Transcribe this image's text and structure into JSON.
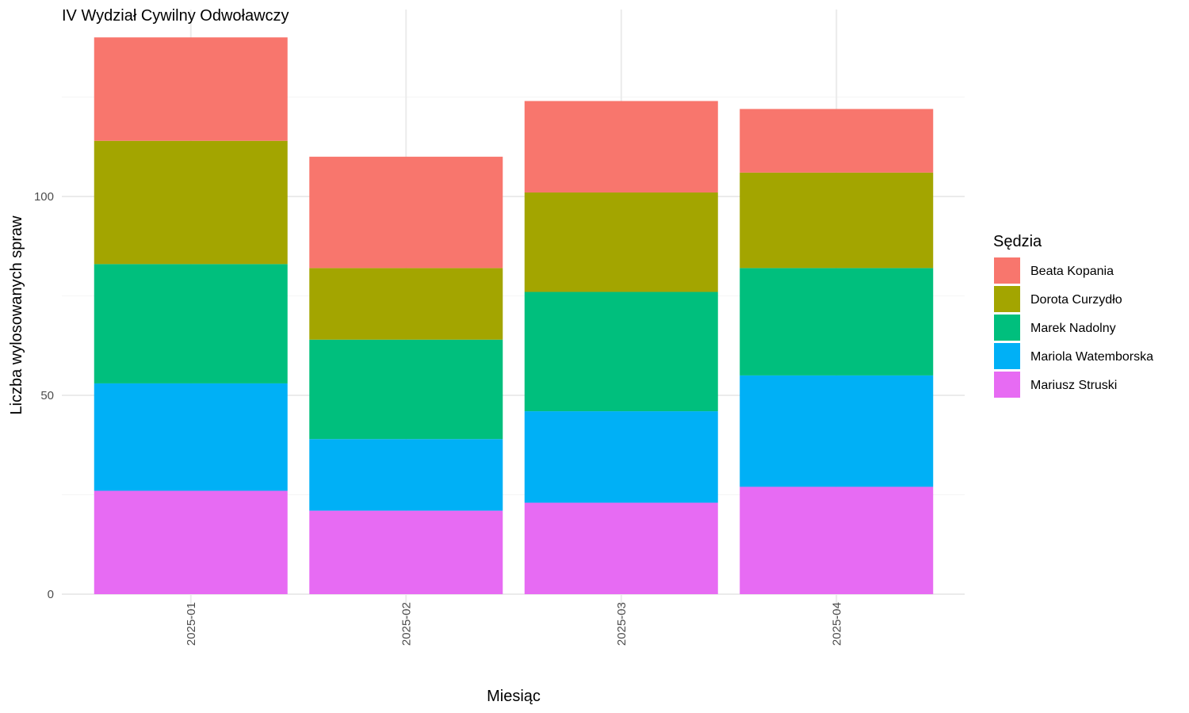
{
  "chart_data": {
    "type": "bar",
    "stacked": true,
    "title": "IV Wydział Cywilny Odwoławczy",
    "xlabel": "Miesiąc",
    "ylabel": "Liczba wylosowanych spraw",
    "categories": [
      "2025-01",
      "2025-02",
      "2025-03",
      "2025-04"
    ],
    "x_tick_rotation": "vertical",
    "ylim": [
      0,
      147
    ],
    "yticks": [
      0,
      50,
      100
    ],
    "grid": true,
    "legend": {
      "title": "Sędzia",
      "placement": "right"
    },
    "series": [
      {
        "name": "Mariusz Struski",
        "color": "#E76BF3",
        "values": [
          26,
          21,
          23,
          27
        ]
      },
      {
        "name": "Mariola Watemborska",
        "color": "#00B0F6",
        "values": [
          27,
          18,
          23,
          28
        ]
      },
      {
        "name": "Marek Nadolny",
        "color": "#00BF7D",
        "values": [
          30,
          25,
          30,
          27
        ]
      },
      {
        "name": "Dorota Curzydło",
        "color": "#A3A500",
        "values": [
          31,
          18,
          25,
          24
        ]
      },
      {
        "name": "Beata Kopania",
        "color": "#F8766D",
        "values": [
          26,
          28,
          23,
          16
        ]
      }
    ],
    "legend_order": [
      "Beata Kopania",
      "Dorota Curzydło",
      "Marek Nadolny",
      "Mariola Watemborska",
      "Mariusz Struski"
    ]
  }
}
